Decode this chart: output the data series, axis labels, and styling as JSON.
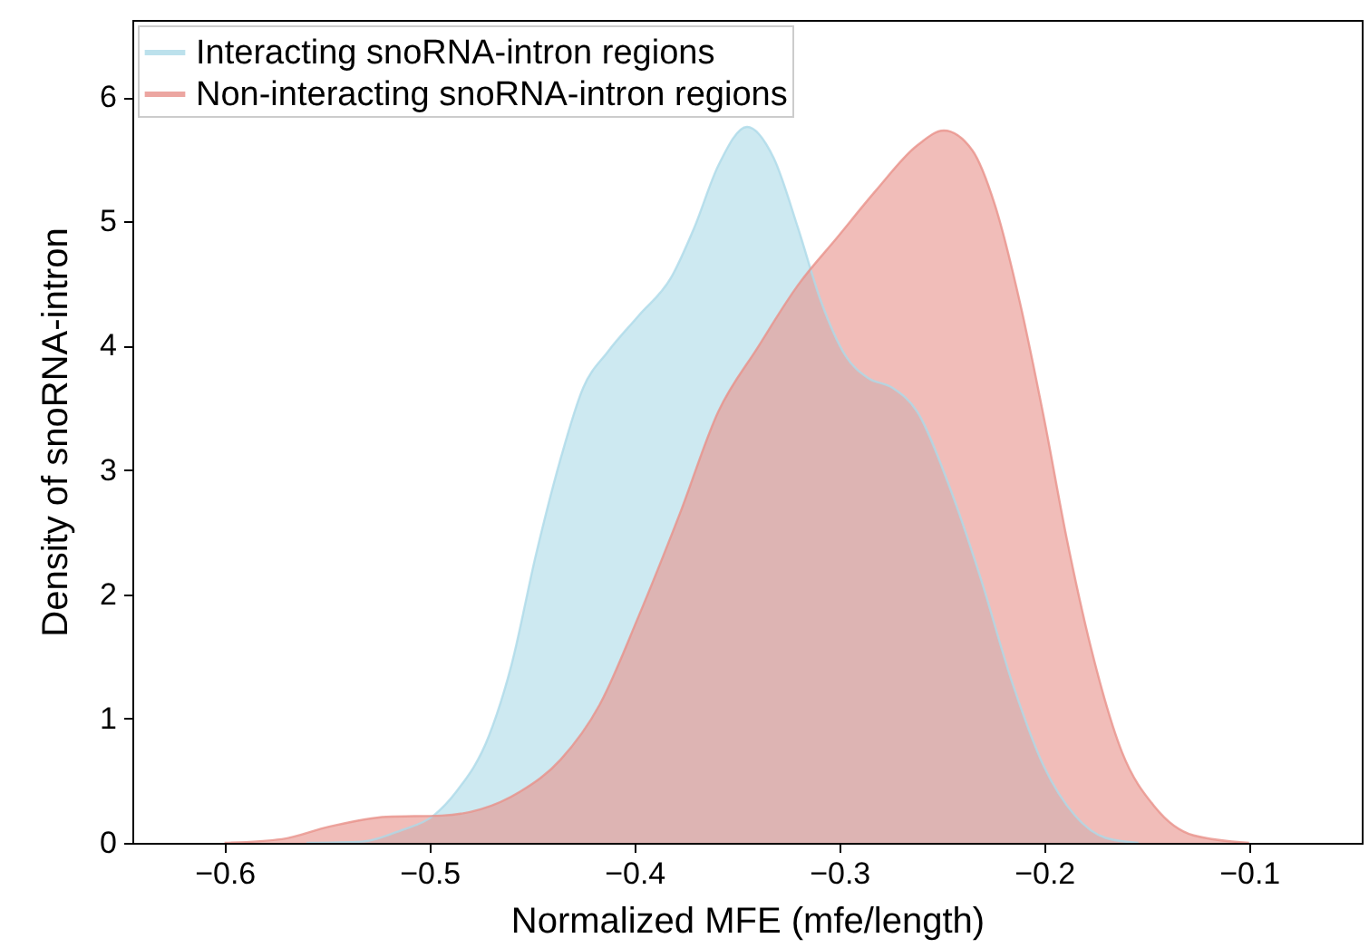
{
  "chart_data": {
    "type": "area",
    "xlabel": "Normalized MFE (mfe/length)",
    "ylabel": "Density of snoRNA-intron",
    "series": [
      {
        "name": "Interacting snoRNA-intron regions",
        "color": "#acdae8",
        "x": [
          -0.56,
          -0.533,
          -0.514,
          -0.498,
          -0.487,
          -0.471,
          -0.46,
          -0.448,
          -0.436,
          -0.425,
          -0.413,
          -0.398,
          -0.382,
          -0.371,
          -0.359,
          -0.345,
          -0.332,
          -0.32,
          -0.309,
          -0.297,
          -0.286,
          -0.274,
          -0.262,
          -0.247,
          -0.231,
          -0.216,
          -0.2,
          -0.185,
          -0.17,
          -0.154
        ],
        "values": [
          0,
          0.01,
          0.1,
          0.22,
          0.41,
          0.86,
          1.43,
          2.32,
          3.09,
          3.66,
          3.95,
          4.24,
          4.55,
          4.94,
          5.45,
          5.76,
          5.51,
          4.94,
          4.36,
          3.92,
          3.74,
          3.66,
          3.47,
          2.9,
          2.13,
          1.31,
          0.61,
          0.22,
          0.04,
          0
        ]
      },
      {
        "name": "Non-interacting snoRNA-intron regions",
        "color": "#e8918a",
        "x": [
          -0.6,
          -0.572,
          -0.549,
          -0.521,
          -0.494,
          -0.475,
          -0.456,
          -0.436,
          -0.417,
          -0.398,
          -0.378,
          -0.359,
          -0.34,
          -0.32,
          -0.301,
          -0.282,
          -0.262,
          -0.249,
          -0.235,
          -0.224,
          -0.212,
          -0.2,
          -0.189,
          -0.177,
          -0.162,
          -0.146,
          -0.127,
          -0.1
        ],
        "values": [
          0,
          0.03,
          0.13,
          0.21,
          0.22,
          0.27,
          0.41,
          0.67,
          1.11,
          1.82,
          2.64,
          3.47,
          3.98,
          4.49,
          4.87,
          5.25,
          5.61,
          5.73,
          5.57,
          5.13,
          4.36,
          3.41,
          2.45,
          1.56,
          0.73,
          0.29,
          0.06,
          0
        ]
      }
    ],
    "xlim": [
      -0.645,
      -0.045
    ],
    "xticks": [
      -0.6,
      -0.5,
      -0.4,
      -0.3,
      -0.2,
      -0.1
    ],
    "ylim": [
      0,
      6.62
    ],
    "yticks": [
      0,
      1,
      2,
      3,
      4,
      5,
      6
    ],
    "legend": "top left",
    "grid": false
  }
}
